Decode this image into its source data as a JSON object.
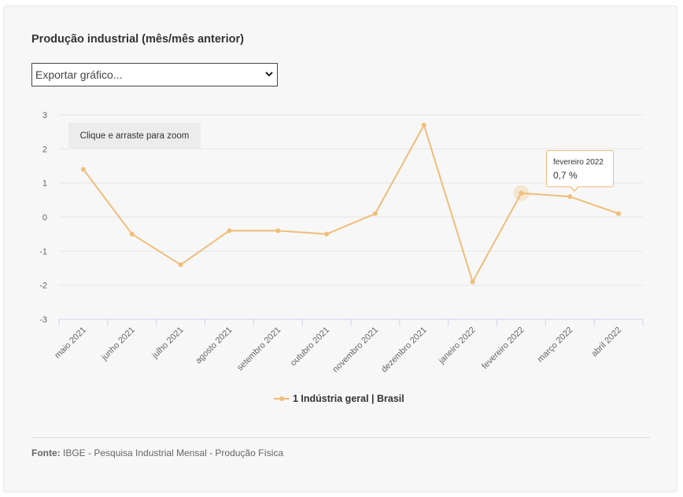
{
  "title": "Produção industrial (mês/mês anterior)",
  "export": {
    "selected": "Exportar gráfico...",
    "arrow_icon": "chevron-down-icon"
  },
  "zoom_hint": "Clique e arraste para zoom",
  "tooltip": {
    "date": "fevereiro 2022",
    "value": "0,7 %"
  },
  "source": {
    "label": "Fonte:",
    "text": "IBGE - Pesquisa Industrial Mensal - Produção Física"
  },
  "colors": {
    "series": "#f0bd79",
    "grid": "#e6e6e6",
    "axis": "#ccd6eb",
    "label": "#666666"
  },
  "chart_data": {
    "type": "line",
    "categories": [
      "maio 2021",
      "junho 2021",
      "julho 2021",
      "agosto 2021",
      "setembro 2021",
      "outubro 2021",
      "novembro 2021",
      "dezembro 2021",
      "janeiro 2022",
      "fevereiro 2022",
      "março 2022",
      "abril 2022"
    ],
    "series": [
      {
        "name": "1 Indústria geral | Brasil",
        "values": [
          1.4,
          -0.5,
          -1.4,
          -0.4,
          -0.4,
          -0.5,
          0.1,
          2.7,
          -1.9,
          0.7,
          0.6,
          0.1
        ]
      }
    ],
    "ylim": [
      -3,
      3
    ],
    "yticks": [
      "3",
      "2",
      "1",
      "0",
      "-1",
      "-2",
      "-3"
    ],
    "yticks_values": [
      3,
      2,
      1,
      0,
      -1,
      -2,
      -3
    ],
    "grid": true,
    "legend": "bottom-center",
    "highlighted_index": 9
  }
}
